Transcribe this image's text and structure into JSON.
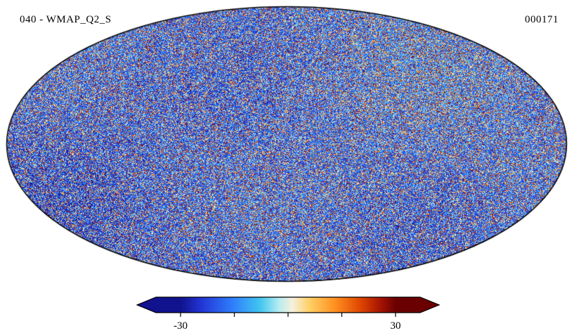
{
  "figure": {
    "title": "040 - WMAP_Q2_S",
    "frame_id": "000171",
    "background": "#ffffff",
    "outline_color": "#000000"
  },
  "chart_data": {
    "type": "heatmap",
    "projection": "mollweide",
    "title": "040 - WMAP_Q2_S",
    "annotation_right": "000171",
    "map_content": "full-sky random speckle noise map, predominantly dark blue with dense multicolour (cyan, white, orange, red) pixel speckles",
    "grid": false,
    "legend_position": "bottom-colorbar",
    "colorbar": {
      "min": -30,
      "max": 30,
      "ticks": [
        {
          "value": -30,
          "label": "-30"
        },
        {
          "value": -15,
          "label": ""
        },
        {
          "value": 0,
          "label": ""
        },
        {
          "value": 15,
          "label": ""
        },
        {
          "value": 30,
          "label": "30"
        }
      ],
      "colormap_stops": [
        {
          "pos": 0.0,
          "color": "#10128e"
        },
        {
          "pos": 0.1,
          "color": "#2336d6"
        },
        {
          "pos": 0.24,
          "color": "#2e7dfc"
        },
        {
          "pos": 0.37,
          "color": "#41c6f0"
        },
        {
          "pos": 0.46,
          "color": "#b8ecf0"
        },
        {
          "pos": 0.52,
          "color": "#f6f0dc"
        },
        {
          "pos": 0.6,
          "color": "#ffd065"
        },
        {
          "pos": 0.72,
          "color": "#ff8f1f"
        },
        {
          "pos": 0.84,
          "color": "#dd4400"
        },
        {
          "pos": 0.93,
          "color": "#a51403"
        },
        {
          "pos": 1.0,
          "color": "#6b0000"
        }
      ]
    }
  }
}
